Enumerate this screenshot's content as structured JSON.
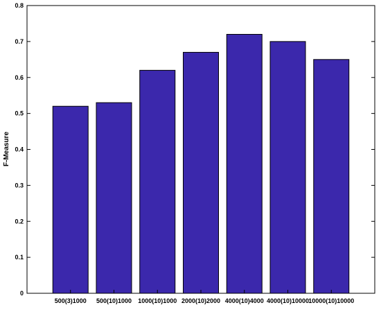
{
  "chart_data": {
    "type": "bar",
    "title": "",
    "xlabel": "",
    "ylabel": "F-Measure",
    "ylim": [
      0,
      0.8
    ],
    "yticks": [
      "0",
      "0.1",
      "0.2",
      "0.3",
      "0.4",
      "0.5",
      "0.6",
      "0.7",
      "0.8"
    ],
    "categories": [
      "500(3)1000",
      "500(10)1000",
      "1000(10)1000",
      "2000(10)2000",
      "4000(10)4000",
      "4000(10)10000",
      "10000(10)10000"
    ],
    "values": [
      0.52,
      0.53,
      0.62,
      0.67,
      0.72,
      0.7,
      0.65
    ],
    "grid": false,
    "legend": "none",
    "colors": {
      "bar_fill": "#3b28ac",
      "bar_stroke": "#000000",
      "axis": "#000000"
    }
  }
}
